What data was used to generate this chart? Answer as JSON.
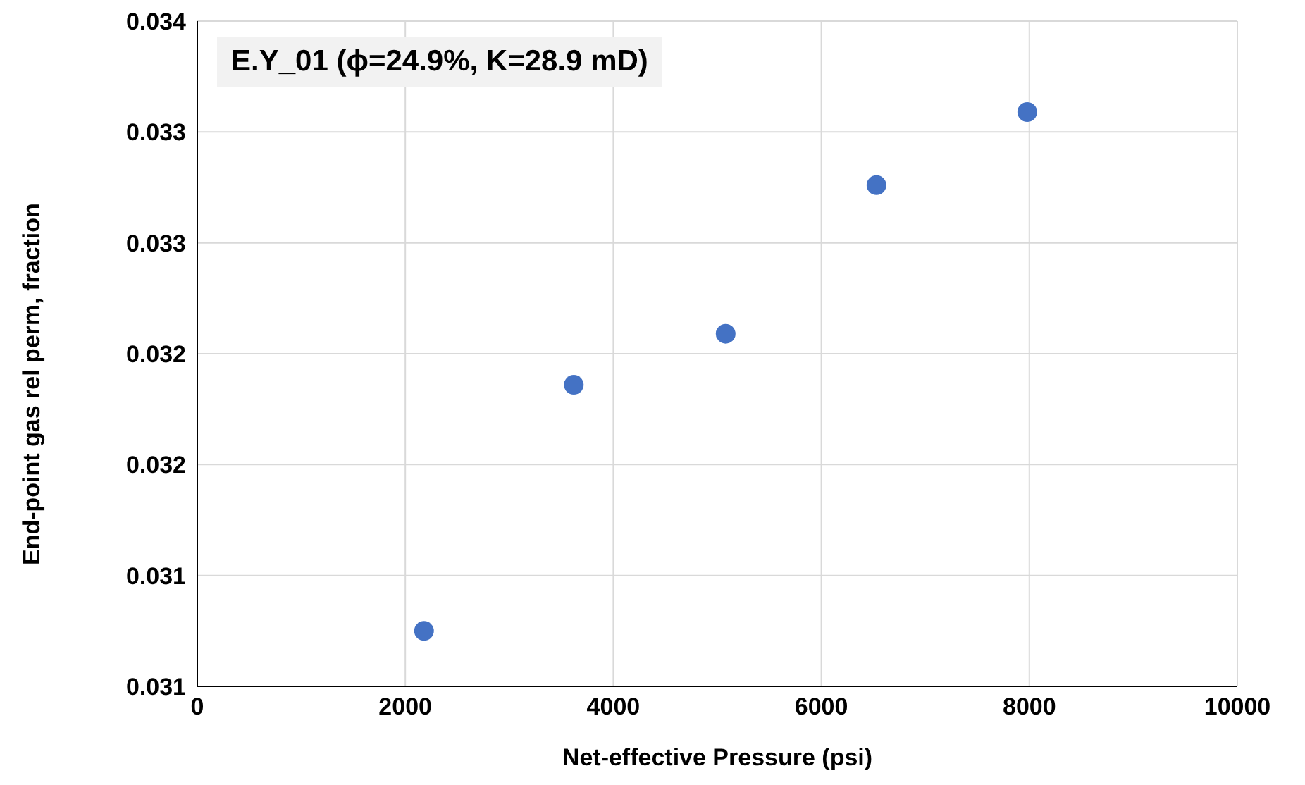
{
  "chart_data": {
    "type": "scatter",
    "title": "E.Y_01 (ϕ=24.9%, K=28.9 mD)",
    "xlabel": "Net-effective Pressure (psi)",
    "ylabel": "End-point gas rel perm, fraction",
    "x": [
      2180,
      3620,
      5080,
      6530,
      7980
    ],
    "values": [
      0.03125,
      0.03236,
      0.03259,
      0.03326,
      0.03359
    ],
    "color": "#4472c4",
    "marker": "circle",
    "grid": true,
    "xlim": [
      0,
      10000
    ],
    "xticks": [
      0,
      2000,
      4000,
      6000,
      8000,
      10000
    ],
    "ylim": [
      0.031,
      0.034
    ],
    "yticks": [
      {
        "value": 0.031,
        "label": "0.031"
      },
      {
        "value": 0.0315,
        "label": "0.031"
      },
      {
        "value": 0.032,
        "label": "0.032"
      },
      {
        "value": 0.0325,
        "label": "0.032"
      },
      {
        "value": 0.033,
        "label": "0.033"
      },
      {
        "value": 0.0335,
        "label": "0.033"
      },
      {
        "value": 0.034,
        "label": "0.034"
      }
    ]
  }
}
